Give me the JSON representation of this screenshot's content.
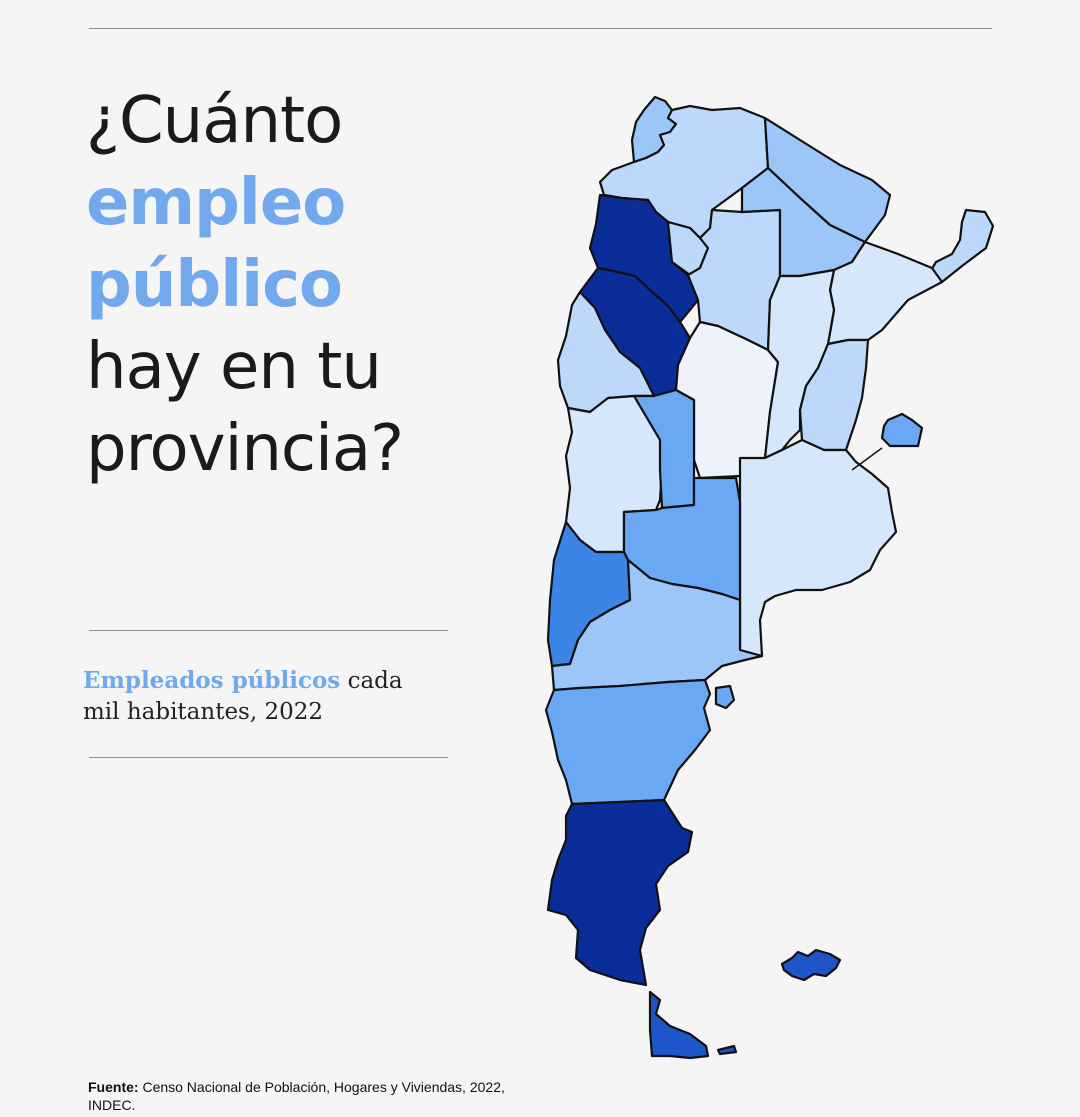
{
  "headline": {
    "line1": "¿Cuánto",
    "line2": "empleo",
    "line3": "público",
    "line4": "hay en tu",
    "line5": "provincia?"
  },
  "subtitle": {
    "highlight": "Empleados públicos",
    "rest_line1": "cada",
    "rest_line2": "mil habitantes, 2022"
  },
  "source": {
    "label": "Fuente:",
    "text": "Censo Nacional de Población, Hogares y Viviendas, 2022, INDEC."
  },
  "colors": {
    "accent": "#72a8ee",
    "scale": [
      "#eef3fb",
      "#d6e6fb",
      "#bcd8fb",
      "#9cc5f8",
      "#6ba8f4",
      "#3b85e6",
      "#1e55c8",
      "#0a2d9a"
    ]
  },
  "map": {
    "regions": [
      {
        "name": "Jujuy",
        "level": 3
      },
      {
        "name": "Salta",
        "level": 2
      },
      {
        "name": "Formosa",
        "level": 3
      },
      {
        "name": "Misiones",
        "level": 2
      },
      {
        "name": "Catamarca",
        "level": 7
      },
      {
        "name": "Tucumán",
        "level": 2
      },
      {
        "name": "Santiago del Estero",
        "level": 2
      },
      {
        "name": "Chaco",
        "level": 3
      },
      {
        "name": "Corrientes",
        "level": 1
      },
      {
        "name": "La Rioja",
        "level": 7
      },
      {
        "name": "San Juan",
        "level": 2
      },
      {
        "name": "Córdoba",
        "level": 0
      },
      {
        "name": "Santa Fe",
        "level": 1
      },
      {
        "name": "Entre Ríos",
        "level": 2
      },
      {
        "name": "Mendoza",
        "level": 1
      },
      {
        "name": "San Luis",
        "level": 4
      },
      {
        "name": "Buenos Aires",
        "level": 1
      },
      {
        "name": "CABA",
        "level": 4
      },
      {
        "name": "La Pampa",
        "level": 4
      },
      {
        "name": "Neuquén",
        "level": 5
      },
      {
        "name": "Río Negro",
        "level": 3
      },
      {
        "name": "Chubut",
        "level": 4
      },
      {
        "name": "Santa Cruz",
        "level": 7
      },
      {
        "name": "Tierra del Fuego",
        "level": 6
      },
      {
        "name": "Islas Malvinas",
        "level": 6
      }
    ]
  }
}
